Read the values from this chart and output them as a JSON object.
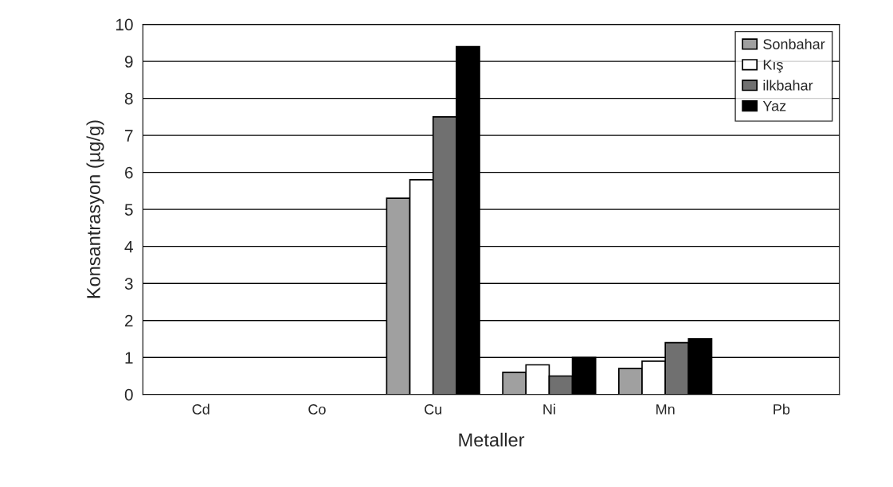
{
  "chart_data": {
    "type": "bar",
    "xlabel": "Metaller",
    "ylabel": "Konsantrasyon (µg/g)",
    "categories": [
      "Cd",
      "Co",
      "Cu",
      "Ni",
      "Mn",
      "Pb"
    ],
    "series": [
      {
        "name": "Sonbahar",
        "color": "#a0a0a0",
        "values": [
          0,
          0,
          5.3,
          0.6,
          0.7,
          0
        ]
      },
      {
        "name": "Kış",
        "color": "#ffffff",
        "values": [
          0,
          0,
          5.8,
          0.8,
          0.9,
          0
        ]
      },
      {
        "name": "ilkbahar",
        "color": "#707070",
        "values": [
          0,
          0,
          7.5,
          0.5,
          1.4,
          0
        ]
      },
      {
        "name": "Yaz",
        "color": "#000000",
        "values": [
          0,
          0,
          9.4,
          1.0,
          1.5,
          0
        ]
      }
    ],
    "ylim": [
      0,
      10
    ],
    "yticks": [
      0,
      1,
      2,
      3,
      4,
      5,
      6,
      7,
      8,
      9,
      10
    ],
    "grid": "y",
    "legend": "top right"
  }
}
